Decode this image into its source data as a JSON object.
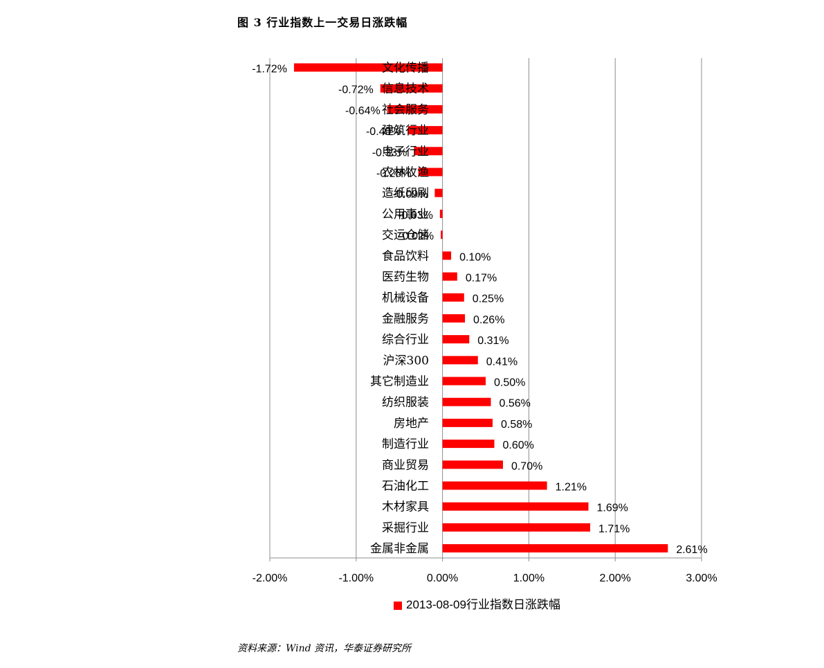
{
  "figure": {
    "title": "图 3   行业指数上一交易日涨跌幅",
    "source": "资料来源：Wind 资讯，华泰证券研究所"
  },
  "colors": {
    "bar": "#ff0000",
    "grid": "#8c8c8c",
    "axis": "#8c8c8c"
  },
  "chart_data": {
    "type": "bar",
    "orientation": "horizontal",
    "categories": [
      "文化传播",
      "信息技术",
      "社会服务",
      "建筑行业",
      "电子行业",
      "农林牧渔",
      "造纸印刷",
      "公用事业",
      "交运仓储",
      "食品饮料",
      "医药生物",
      "机械设备",
      "金融服务",
      "综合行业",
      "沪深300",
      "其它制造业",
      "纺织服装",
      "房地产",
      "制造行业",
      "商业贸易",
      "石油化工",
      "木材家具",
      "采掘行业",
      "金属非金属"
    ],
    "series": [
      {
        "name": "2013-08-09行业指数日涨跌幅",
        "values": [
          -1.72,
          -0.72,
          -0.64,
          -0.4,
          -0.33,
          -0.28,
          -0.09,
          -0.03,
          -0.02,
          0.1,
          0.17,
          0.25,
          0.26,
          0.31,
          0.41,
          0.5,
          0.56,
          0.58,
          0.6,
          0.7,
          1.21,
          1.69,
          1.71,
          2.61
        ],
        "labels": [
          "-1.72%",
          "-0.72%",
          "-0.64%",
          "-0.40%",
          "-0.33%",
          "-0.28%",
          "-0.09%",
          "-0.03%",
          "-0.02%",
          "0.10%",
          "0.17%",
          "0.25%",
          "0.26%",
          "0.31%",
          "0.41%",
          "0.50%",
          "0.56%",
          "0.58%",
          "0.60%",
          "0.70%",
          "1.21%",
          "1.69%",
          "1.71%",
          "2.61%"
        ]
      }
    ],
    "xlim": [
      -2.0,
      3.0
    ],
    "xticks": [
      -2,
      -1,
      0,
      1,
      2,
      3
    ],
    "xtick_labels": [
      "-2.00%",
      "-1.00%",
      "0.00%",
      "1.00%",
      "2.00%",
      "3.00%"
    ],
    "grid": true,
    "legend_position": "bottom"
  }
}
